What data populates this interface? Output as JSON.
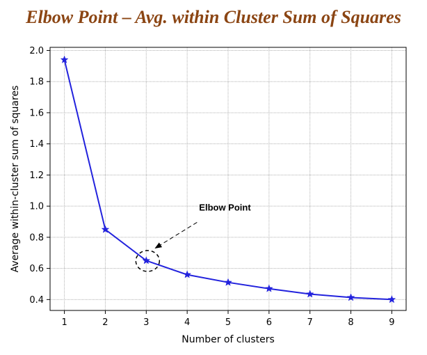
{
  "chart_data": {
    "type": "line",
    "title": "Elbow Point – Avg. within Cluster Sum of Squares",
    "xlabel": "Number of clusters",
    "ylabel": "Average within-cluster sum of squares",
    "x": [
      1,
      2,
      3,
      4,
      5,
      6,
      7,
      8,
      9
    ],
    "series": [
      {
        "values": [
          1.94,
          0.85,
          0.65,
          0.56,
          0.51,
          0.47,
          0.435,
          0.413,
          0.4
        ]
      }
    ],
    "xticks": [
      "1",
      "2",
      "3",
      "4",
      "5",
      "6",
      "7",
      "8",
      "9"
    ],
    "yticks": [
      "0.4",
      "0.6",
      "0.8",
      "1.0",
      "1.2",
      "1.4",
      "1.6",
      "1.8",
      "2.0"
    ],
    "xlim": [
      0.65,
      9.35
    ],
    "ylim": [
      0.33,
      2.02
    ],
    "grid": true,
    "marker": "star",
    "line_color": "#2222dd",
    "annotation": {
      "text": "Elbow Point",
      "x": 3,
      "y": 0.65
    }
  }
}
